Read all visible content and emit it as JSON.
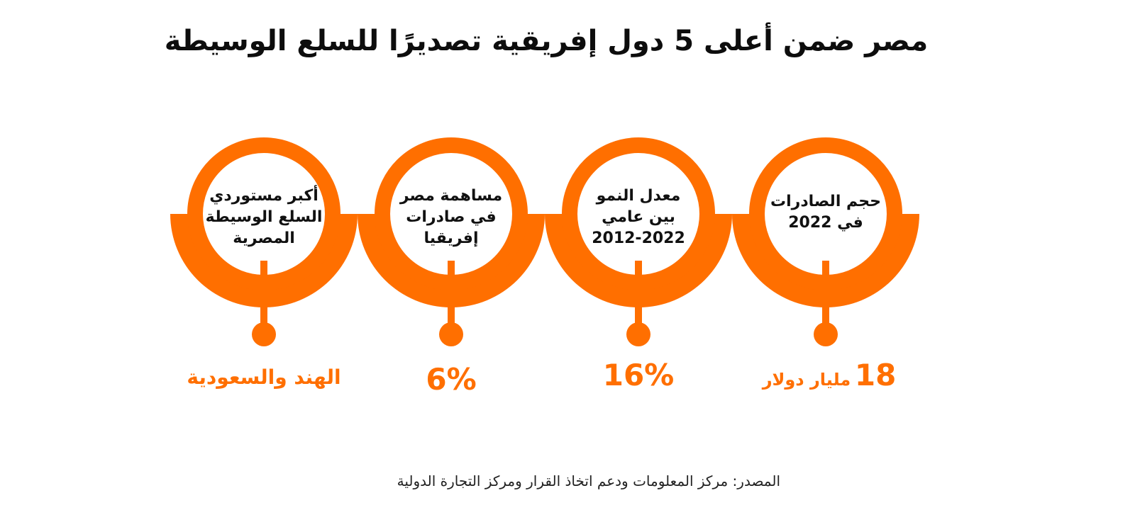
{
  "title": "مصر ضمن أعلى 5 دول إفريقية تصديرًا للسلع الوسيطة",
  "colors": {
    "accent": "#ff6f00",
    "text": "#111111"
  },
  "items": [
    {
      "label_lines": [
        "حجم الصادرات",
        "في 2022"
      ],
      "value_main": "18",
      "value_unit": "مليار دولار"
    },
    {
      "label_lines": [
        "معدل النمو",
        "بين عامي",
        "2012-2022"
      ],
      "value_main": "16%"
    },
    {
      "label_lines": [
        "مساهمة مصر",
        "في صادرات",
        "إفريقيا"
      ],
      "value_main": "6%"
    },
    {
      "label_lines": [
        "أكبر مستوردي",
        "السلع الوسيطة",
        "المصرية"
      ],
      "value_text": "الهند والسعودية"
    }
  ],
  "source": "المصدر: مركز المعلومات ودعم اتخاذ القرار ومركز التجارة الدولية"
}
